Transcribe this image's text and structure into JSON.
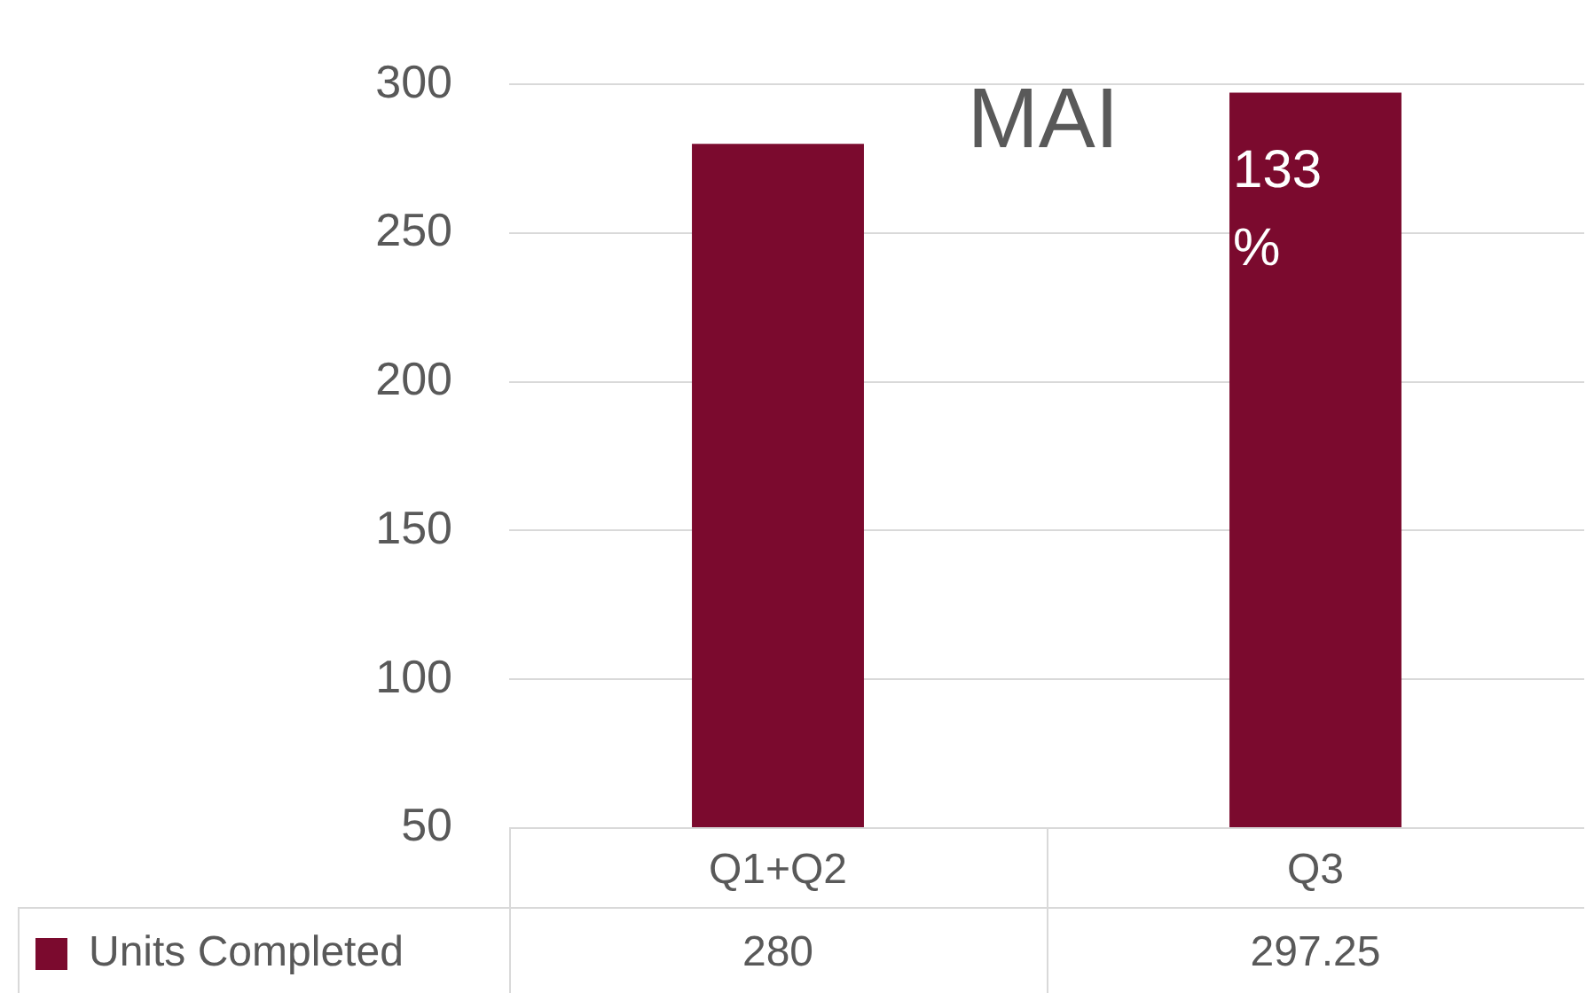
{
  "chart_data": {
    "type": "bar",
    "title": "MAI",
    "categories": [
      "Q1+Q2",
      "Q3"
    ],
    "series": [
      {
        "name": "Units Completed",
        "color": "#7b0a2e",
        "values": [
          280,
          297.25
        ]
      }
    ],
    "ylim": [
      50,
      300
    ],
    "yticks": [
      50,
      100,
      150,
      200,
      250,
      300
    ],
    "grid": "y",
    "data_labels": true,
    "annotations": [
      "133 %"
    ]
  }
}
